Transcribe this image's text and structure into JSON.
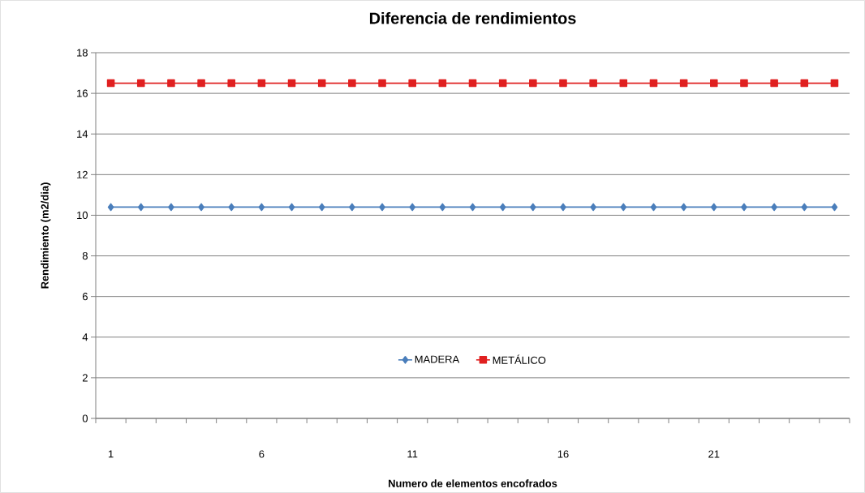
{
  "chart_data": {
    "type": "line",
    "title": "Diferencia de rendimientos",
    "xlabel": "Numero de elementos encofrados",
    "ylabel": "Rendimiento (m2/dia)",
    "categories": [
      "1",
      null,
      null,
      null,
      null,
      "6",
      null,
      null,
      null,
      null,
      "11",
      null,
      null,
      null,
      null,
      "16",
      null,
      null,
      null,
      null,
      "21",
      null,
      null,
      null,
      null
    ],
    "series": [
      {
        "name": "MADERA",
        "color": "#4a7ebb",
        "marker": "diamond",
        "values": [
          10.4,
          10.4,
          10.4,
          10.4,
          10.4,
          10.4,
          10.4,
          10.4,
          10.4,
          10.4,
          10.4,
          10.4,
          10.4,
          10.4,
          10.4,
          10.4,
          10.4,
          10.4,
          10.4,
          10.4,
          10.4,
          10.4,
          10.4,
          10.4,
          10.4
        ]
      },
      {
        "name": "METÁLICO",
        "color": "#e02020",
        "marker": "square",
        "values": [
          16.5,
          16.5,
          16.5,
          16.5,
          16.5,
          16.5,
          16.5,
          16.5,
          16.5,
          16.5,
          16.5,
          16.5,
          16.5,
          16.5,
          16.5,
          16.5,
          16.5,
          16.5,
          16.5,
          16.5,
          16.5,
          16.5,
          16.5,
          16.5,
          16.5
        ]
      }
    ],
    "ylim": [
      0,
      18
    ],
    "yticks": [
      0,
      2,
      4,
      6,
      8,
      10,
      12,
      14,
      16,
      18
    ],
    "grid": "y",
    "legend": "bottom"
  }
}
